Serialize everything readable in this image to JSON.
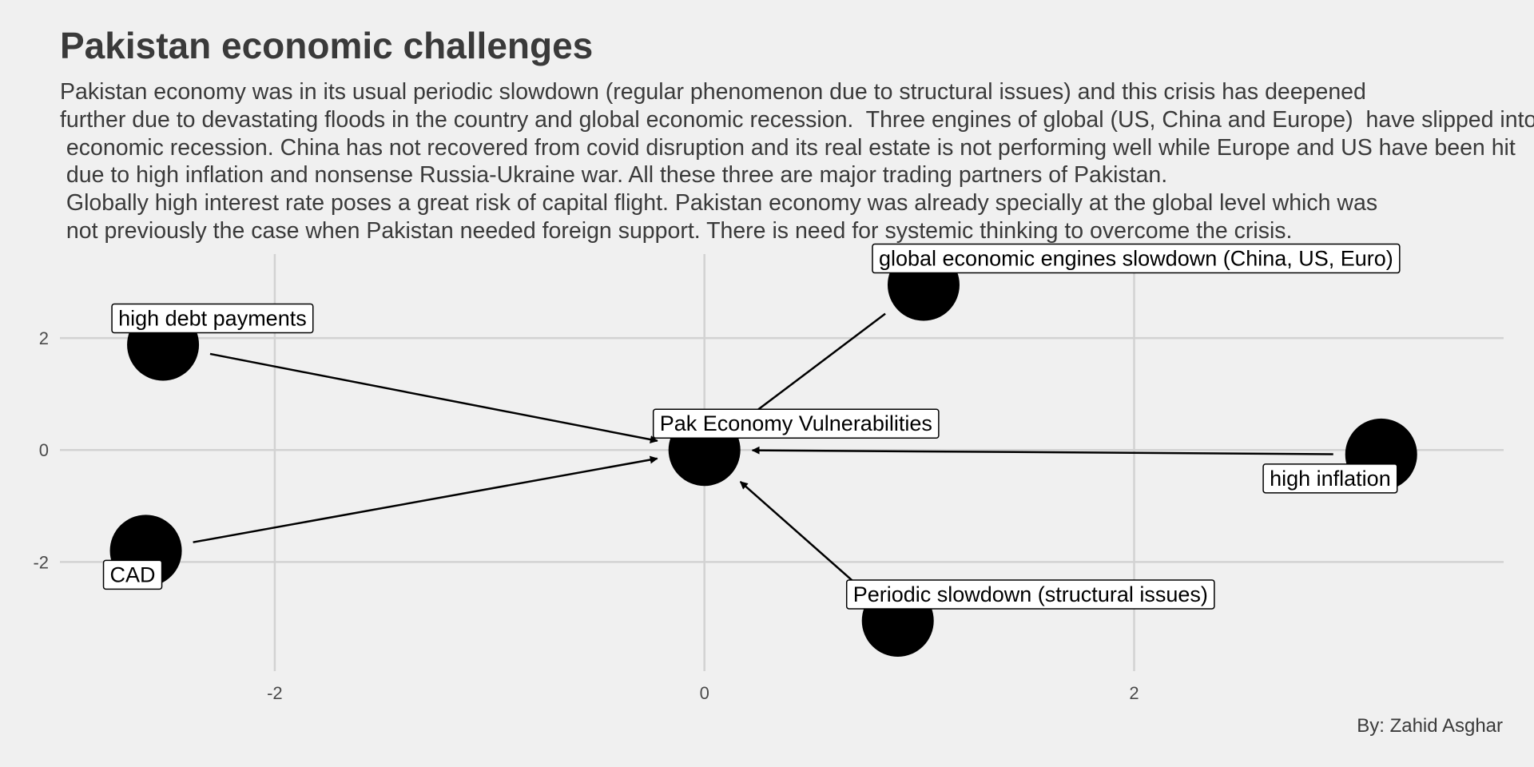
{
  "header": {
    "title": "Pakistan economic challenges",
    "subtitle_lines": [
      "Pakistan economy was in its usual periodic slowdown (regular phenomenon due to structural issues) and this crisis has deepened",
      "further due to devastating floods in the country and global economic recession.  Three engines of global (US, China and Europe)  have slipped into",
      " economic recession. China has not recovered from covid disruption and its real estate is not performing well while Europe and US have been hit",
      " due to high inflation and nonsense Russia-Ukraine war. All these three are major trading partners of Pakistan.",
      " Globally high interest rate poses a great risk of capital flight. Pakistan economy was already specially at the global level which was",
      " not previously the case when Pakistan needed foreign support. There is need for systemic thinking to overcome the crisis."
    ]
  },
  "caption": "By: Zahid Asghar",
  "chart_data": {
    "type": "network",
    "xlim": [
      -3.0,
      3.72
    ],
    "ylim": [
      -3.95,
      3.5
    ],
    "x_ticks": [
      -2,
      0,
      2
    ],
    "y_ticks": [
      -2,
      0,
      2
    ],
    "x_tick_labels": [
      "-2",
      "0",
      "2"
    ],
    "y_tick_labels": [
      "-2",
      "0",
      "2"
    ],
    "grid": true,
    "node_color": "#000000",
    "nodes": [
      {
        "id": "center",
        "label": "Pak Economy Vulnerabilities",
        "x": 0.0,
        "y": 0.0,
        "label_anchor": "top-right"
      },
      {
        "id": "debt",
        "label": "high debt payments",
        "x": -2.52,
        "y": 1.88,
        "label_anchor": "top-right"
      },
      {
        "id": "global",
        "label": "global economic engines slowdown (China, US, Euro)",
        "x": 1.02,
        "y": 2.95,
        "label_anchor": "top-right"
      },
      {
        "id": "inflation",
        "label": "high inflation",
        "x": 3.15,
        "y": -0.08,
        "label_anchor": "bottom-left"
      },
      {
        "id": "cad",
        "label": "CAD",
        "x": -2.6,
        "y": -1.8,
        "label_anchor": "bottom-left"
      },
      {
        "id": "periodic",
        "label": "Periodic slowdown (structural issues)",
        "x": 0.9,
        "y": -3.05,
        "label_anchor": "top-right"
      }
    ],
    "edges": [
      {
        "from": "debt",
        "to": "center"
      },
      {
        "from": "global",
        "to": "center"
      },
      {
        "from": "inflation",
        "to": "center"
      },
      {
        "from": "cad",
        "to": "center"
      },
      {
        "from": "periodic",
        "to": "center"
      }
    ]
  }
}
